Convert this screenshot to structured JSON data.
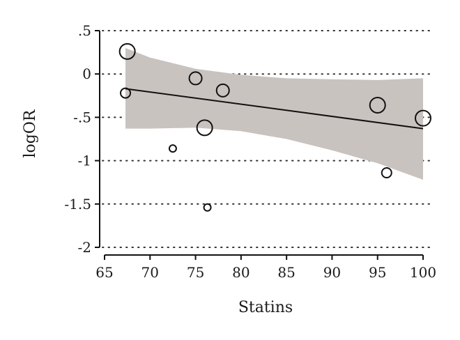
{
  "chart_data": {
    "type": "scatter",
    "title": "",
    "xlabel": "Statins",
    "ylabel": "logOR",
    "xlim": [
      64,
      101
    ],
    "ylim": [
      -2.05,
      0.55
    ],
    "x_ticks": [
      65,
      70,
      75,
      80,
      85,
      90,
      95,
      100
    ],
    "x_tick_labels": [
      "65",
      "70",
      "75",
      "80",
      "85",
      "90",
      "95",
      "100"
    ],
    "y_ticks": [
      0.5,
      0,
      -0.5,
      -1,
      -1.5,
      -2
    ],
    "y_tick_labels": [
      ".5",
      "0",
      "-.5",
      "-1",
      "-1.5",
      "-2"
    ],
    "grid": "horizontal dotted",
    "points": [
      {
        "x": 67.5,
        "y": 0.26,
        "weight": "large"
      },
      {
        "x": 67.3,
        "y": -0.22,
        "weight": "small"
      },
      {
        "x": 72.5,
        "y": -0.86,
        "weight": "tiny"
      },
      {
        "x": 75.0,
        "y": -0.05,
        "weight": "medium"
      },
      {
        "x": 76.0,
        "y": -0.62,
        "weight": "large"
      },
      {
        "x": 76.3,
        "y": -1.54,
        "weight": "tiny"
      },
      {
        "x": 78.0,
        "y": -0.19,
        "weight": "medium"
      },
      {
        "x": 95.0,
        "y": -0.36,
        "weight": "large"
      },
      {
        "x": 96.0,
        "y": -1.14,
        "weight": "small"
      },
      {
        "x": 100.0,
        "y": -0.51,
        "weight": "large"
      }
    ],
    "fit_line": {
      "x": [
        67.3,
        100.0
      ],
      "y": [
        -0.17,
        -0.63
      ]
    },
    "confidence_band": {
      "x": [
        67.3,
        70,
        75,
        80,
        85,
        90,
        95,
        100
      ],
      "upper": [
        0.3,
        0.19,
        0.06,
        -0.01,
        -0.05,
        -0.06,
        -0.07,
        -0.05
      ],
      "lower": [
        -0.63,
        -0.63,
        -0.62,
        -0.66,
        -0.75,
        -0.88,
        -1.03,
        -1.22
      ]
    },
    "colors": {
      "band": "#c9c3bf",
      "line": "#111111",
      "marker": "#111111",
      "grid": "#333333"
    }
  }
}
